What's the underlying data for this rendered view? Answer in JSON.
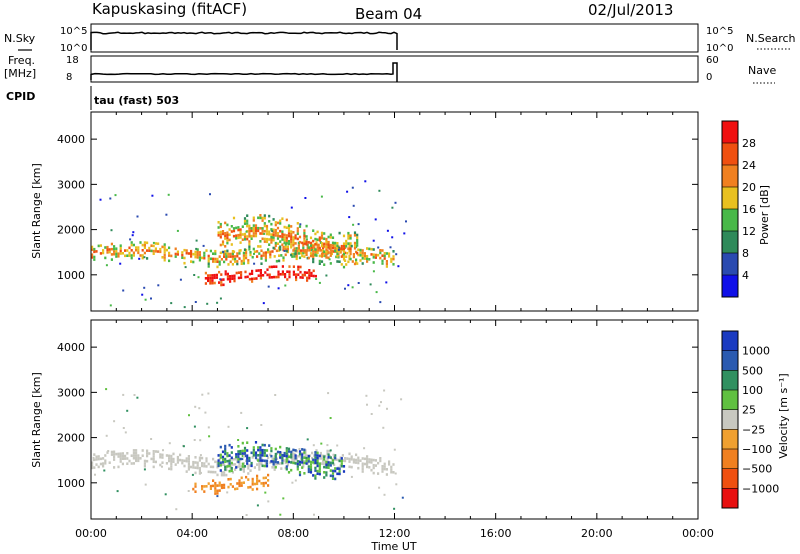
{
  "header": {
    "station_title": "Kapuskasing (fitACF)",
    "beam": "Beam 04",
    "date": "02/Jul/2013"
  },
  "status_panels": {
    "nsky_label": "N.Sky",
    "nsearch_label": "N.Search",
    "nsky_ticks": [
      "10^5",
      "10^0"
    ],
    "nsearch_ticks": [
      "10^5",
      "10^0"
    ],
    "freq_label_1": "Freq.",
    "freq_label_2": "[MHz]",
    "freq_ticks": [
      "18",
      "8"
    ],
    "nave_label": "Nave",
    "nave_ticks": [
      "60",
      "0"
    ],
    "cpid_label": "CPID",
    "cpid_value": "tau (fast) 503"
  },
  "colors": {
    "power": [
      "#1010e8",
      "#2a4ab0",
      "#2f8a5a",
      "#48b848",
      "#e8c020",
      "#f08020",
      "#f05010",
      "#f01010"
    ],
    "velocity": [
      "#e81010",
      "#f05010",
      "#f08020",
      "#f0a030",
      "#c8c8c0",
      "#60c040",
      "#309060",
      "#2a5ab0",
      "#1a3ac0"
    ]
  },
  "chart_data": [
    {
      "type": "heatmap",
      "panel": "power",
      "ylabel": "Slant Range [km]",
      "xlabel": "",
      "ylim": [
        200,
        4600
      ],
      "xlim_hours": [
        0,
        24
      ],
      "yticks": [
        "1000",
        "2000",
        "3000",
        "4000"
      ],
      "colorbar": {
        "label": "Power [dB]",
        "ticks": [
          "4",
          "8",
          "12",
          "16",
          "20",
          "24",
          "28"
        ],
        "range": [
          0,
          32
        ]
      },
      "echo_regions": [
        {
          "t_start": 0.0,
          "t_end": 12.0,
          "range_center": 1500,
          "range_width": 400,
          "level": "moderate"
        },
        {
          "t_start": 4.5,
          "t_end": 9.0,
          "range_center": 1000,
          "range_width": 300,
          "level": "high"
        },
        {
          "t_start": 5.0,
          "t_end": 10.5,
          "range_center": 1800,
          "range_width": 800,
          "level": "moderate"
        }
      ]
    },
    {
      "type": "heatmap",
      "panel": "velocity",
      "ylabel": "Slant Range [km]",
      "xlabel": "Time UT",
      "ylim": [
        200,
        4600
      ],
      "xlim_hours": [
        0,
        24
      ],
      "xticks": [
        "00:00",
        "04:00",
        "08:00",
        "12:00",
        "16:00",
        "20:00",
        "00:00"
      ],
      "yticks": [
        "1000",
        "2000",
        "3000",
        "4000"
      ],
      "colorbar": {
        "label": "Velocity [m s⁻¹]",
        "ticks": [
          "1000",
          "500",
          "100",
          "25",
          "−25",
          "−100",
          "−500",
          "−1000"
        ]
      },
      "echo_regions": [
        {
          "t_start": 0.0,
          "t_end": 12.0,
          "range_center": 1500,
          "range_width": 400,
          "level": "ground"
        },
        {
          "t_start": 4.0,
          "t_end": 7.0,
          "range_center": 1000,
          "range_width": 300,
          "level": "negative"
        },
        {
          "t_start": 5.0,
          "t_end": 10.0,
          "range_center": 1500,
          "range_width": 600,
          "level": "positive"
        }
      ]
    }
  ]
}
